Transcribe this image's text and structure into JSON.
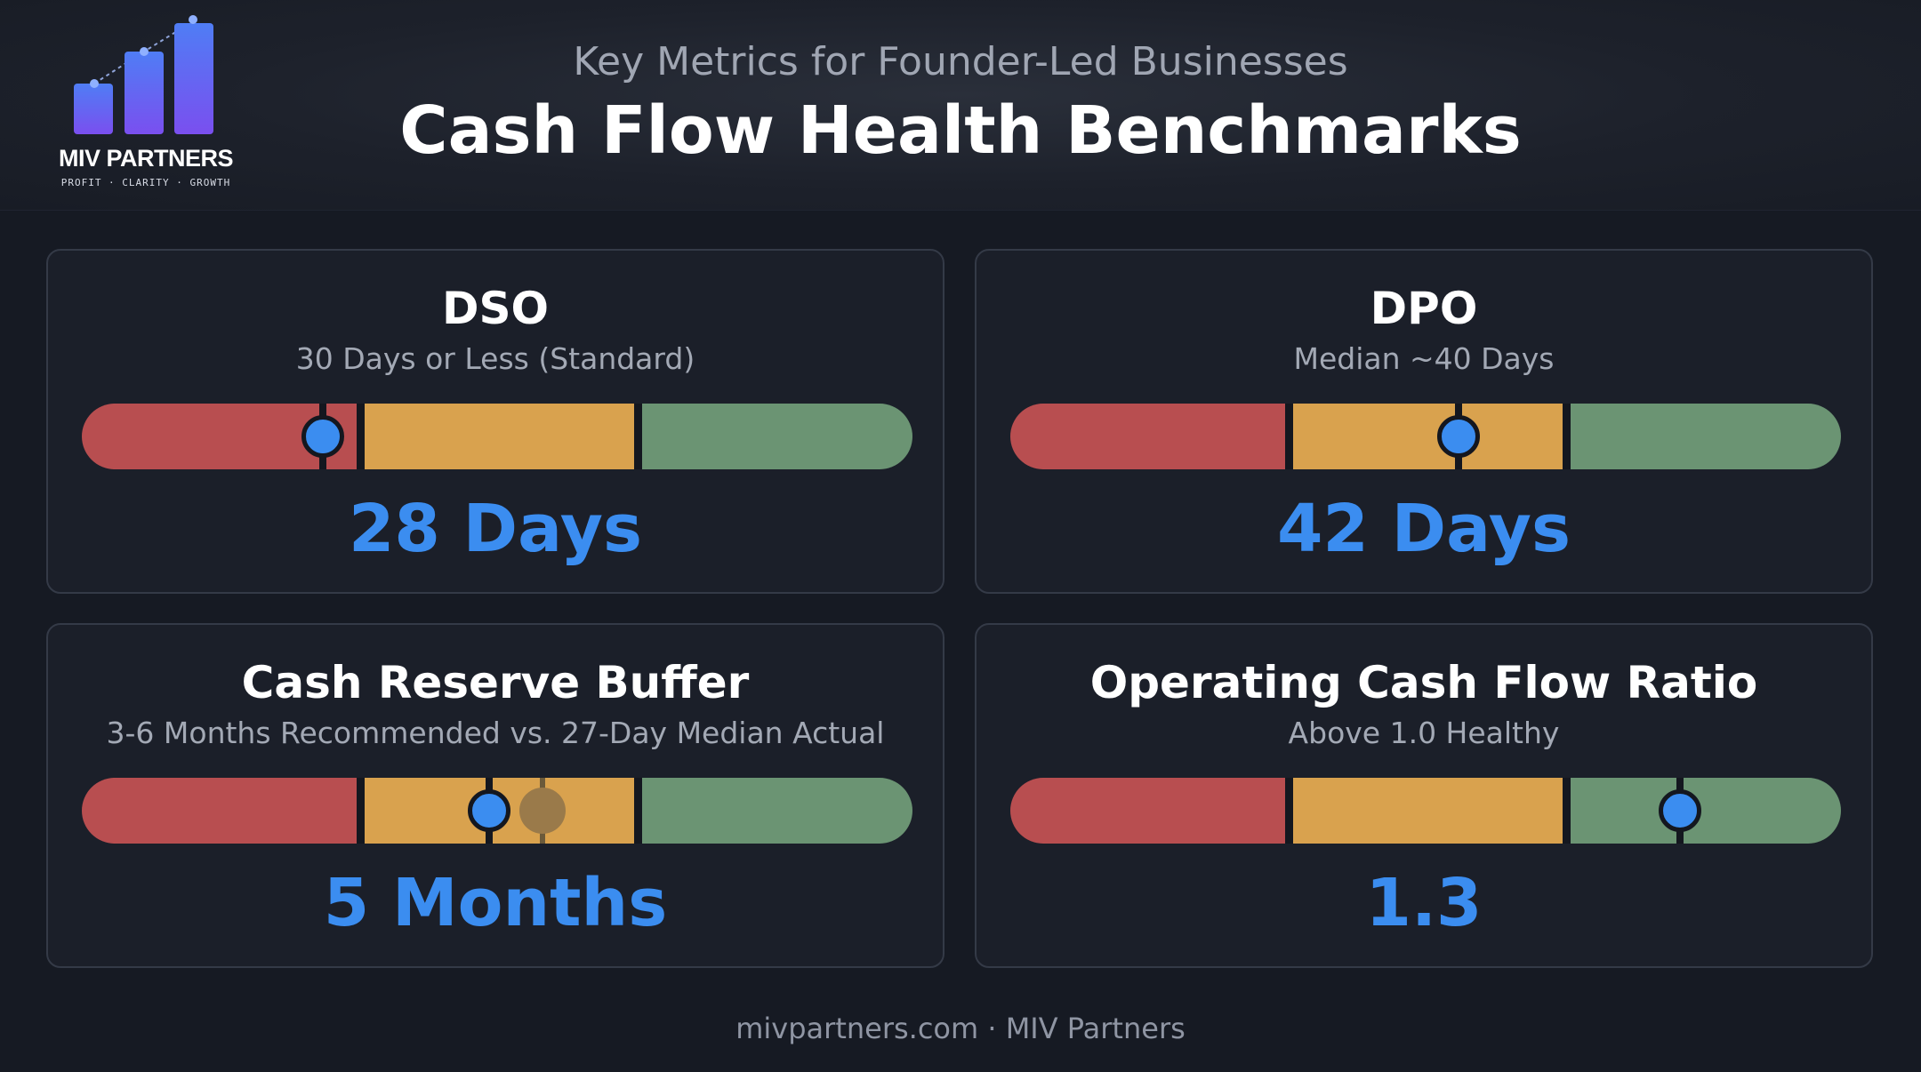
{
  "brand": {
    "name": "MIV PARTNERS",
    "tagline": "PROFIT · CLARITY · GROWTH",
    "color": "#6a5cf5"
  },
  "header": {
    "subtitle": "Key Metrics for Founder-Led Businesses",
    "title": "Cash Flow Health Benchmarks"
  },
  "zone_colors": {
    "red": "#b84e50",
    "amber": "#d9a24e",
    "green": "#6b9473",
    "marker": "#3b8df0"
  },
  "metrics": [
    {
      "title": "DSO",
      "subtitle": "30 Days or Less (Standard)",
      "value": "28 Days",
      "marker_level": 0.29
    },
    {
      "title": "DPO",
      "subtitle": "Median ~40 Days",
      "value": "42 Days",
      "marker_level": 0.54
    },
    {
      "title": "Cash Reserve Buffer",
      "subtitle": "3-6 Months Recommended vs. 27-Day Median Actual",
      "value": "5 Months",
      "marker_level": 0.49,
      "secondary_marker_level": 0.555
    },
    {
      "title": "Operating Cash Flow Ratio",
      "subtitle": "Above 1.0 Healthy",
      "value": "1.3",
      "marker_level": 0.806
    }
  ],
  "footer": "mivpartners.com · MIV Partners"
}
